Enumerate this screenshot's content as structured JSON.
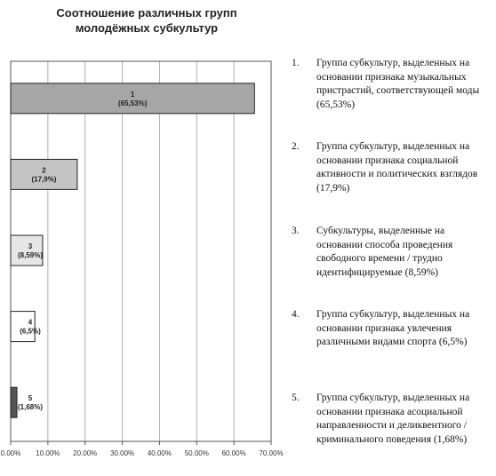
{
  "chart_data": {
    "type": "bar",
    "orientation": "horizontal",
    "title": [
      "Соотношение различных групп",
      "молодёжных субкультур"
    ],
    "xlabel": "",
    "ylabel": "",
    "xlim": [
      0,
      70
    ],
    "grid": true,
    "ticks": [
      "0.00%",
      "10.00%",
      "20.00%",
      "30.00%",
      "40.00%",
      "50.00%",
      "60.00%",
      "70.00%"
    ],
    "bars": [
      {
        "label": "1",
        "value_label": "(65,53%)",
        "value": 65.53,
        "color": "#a6a6a6"
      },
      {
        "label": "2",
        "value_label": "(17,9%)",
        "value": 17.9,
        "color": "#c4c4c4"
      },
      {
        "label": "3",
        "value_label": "(8,59%)",
        "value": 8.59,
        "color": "#e6e6e6"
      },
      {
        "label": "4",
        "value_label": "(6,5%)",
        "value": 6.5,
        "color": "#ffffff"
      },
      {
        "label": "5",
        "value_label": "(1,68%)",
        "value": 1.68,
        "color": "#555555"
      }
    ],
    "legend": [
      {
        "num": "1.",
        "text": "Группа субкультур, выделенных на основании признака музыкальных пристрастий, соответствующей моды (65,53%)"
      },
      {
        "num": "2.",
        "text": "Группа субкультур, выделенных на основании признака социальной активности и политических взглядов (17,9%)"
      },
      {
        "num": "3.",
        "text": "Субкультуры, выделенные на основании способа проведения свободного времени / трудно идентифицируемые (8,59%)"
      },
      {
        "num": "4.",
        "text": "Группа субкультур, выделенных на основании признака увлечения различными видами спорта (6,5%)"
      },
      {
        "num": "5.",
        "text": "Группа субкультур, выделенных на основании признака асоциальной направленности и деликвентного / криминального поведения (1,68%)"
      }
    ]
  }
}
